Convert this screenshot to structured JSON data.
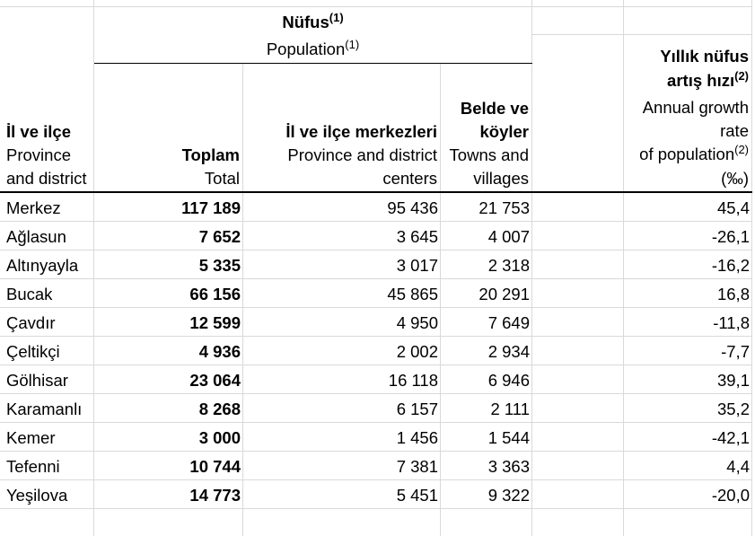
{
  "sheet": {
    "gridline_color": "#d9d9d9",
    "rule_color": "#000000"
  },
  "header": {
    "population": {
      "title": "Nüfus",
      "title_note": "(1)",
      "subtitle": "Population",
      "subtitle_note": "(1)"
    },
    "district": {
      "title": "İl ve ilçe",
      "subtitle_line1": "Province",
      "subtitle_line2": "and district"
    },
    "total": {
      "title": "Toplam",
      "subtitle": "Total"
    },
    "centers": {
      "title": "İl ve ilçe merkezleri",
      "subtitle_line1": "Province and district",
      "subtitle_line2": "centers"
    },
    "villages": {
      "title_line1": "Belde ve",
      "title_line2": "köyler",
      "subtitle_line1": "Towns and",
      "subtitle_line2": "villages"
    },
    "growth": {
      "title_line1": "Yıllık nüfus",
      "title_line2": "artış hızı",
      "title_note": "(2)",
      "subtitle_line1": "Annual growth",
      "subtitle_line2": "rate",
      "subtitle_line3": "of population",
      "subtitle_note": "(2)",
      "unit": "(‰)"
    }
  },
  "rows": [
    {
      "district": "Merkez",
      "total": "117 189",
      "centers": "95 436",
      "villages": "21 753",
      "growth_rate": "45,4"
    },
    {
      "district": "Ağlasun",
      "total": "7 652",
      "centers": "3 645",
      "villages": "4 007",
      "growth_rate": "-26,1"
    },
    {
      "district": "Altınyayla",
      "total": "5 335",
      "centers": "3 017",
      "villages": "2 318",
      "growth_rate": "-16,2"
    },
    {
      "district": "Bucak",
      "total": "66 156",
      "centers": "45 865",
      "villages": "20 291",
      "growth_rate": "16,8"
    },
    {
      "district": "Çavdır",
      "total": "12 599",
      "centers": "4 950",
      "villages": "7 649",
      "growth_rate": "-11,8"
    },
    {
      "district": "Çeltikçi",
      "total": "4 936",
      "centers": "2 002",
      "villages": "2 934",
      "growth_rate": "-7,7"
    },
    {
      "district": "Gölhisar",
      "total": "23 064",
      "centers": "16 118",
      "villages": "6 946",
      "growth_rate": "39,1"
    },
    {
      "district": "Karamanlı",
      "total": "8 268",
      "centers": "6 157",
      "villages": "2 111",
      "growth_rate": "35,2"
    },
    {
      "district": "Kemer",
      "total": "3 000",
      "centers": "1 456",
      "villages": "1 544",
      "growth_rate": "-42,1"
    },
    {
      "district": "Tefenni",
      "total": "10 744",
      "centers": "7 381",
      "villages": "3 363",
      "growth_rate": "4,4"
    },
    {
      "district": "Yeşilova",
      "total": "14 773",
      "centers": "5 451",
      "villages": "9 322",
      "growth_rate": "-20,0"
    }
  ]
}
